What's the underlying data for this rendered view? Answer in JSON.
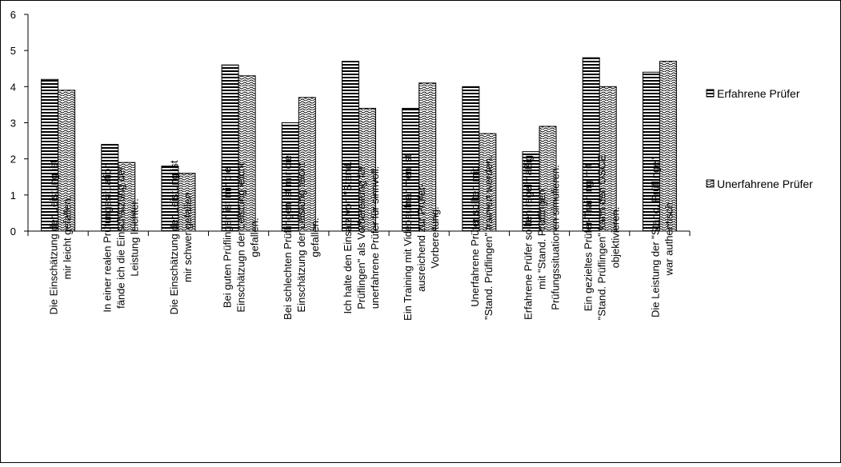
{
  "chart_data": {
    "type": "bar",
    "ylim": [
      0,
      6
    ],
    "yticks": [
      "0",
      "1",
      "2",
      "3",
      "4",
      "5",
      "6"
    ],
    "grid": false,
    "legend_position": "right",
    "categories": [
      [
        "Die Einschätzung der Leistung ist",
        "mir leicht gefallen."
      ],
      [
        "In einer realen Prüfungssituation",
        "fände ich die Einschätzung der",
        "Leistung leichter."
      ],
      [
        "Die Einschätzung der Leistung ist",
        "mir schwer gefallen"
      ],
      [
        "Bei guten Prüflingen ist mir die",
        "Einschätzugn der Leistung leicht",
        "gefallen."
      ],
      [
        "Bei schlechten Prüflingen ist mir die",
        "Einschätzung der Leistung leicht",
        "gefallen."
      ],
      [
        "Ich halte den Einsatz von \"Stand.",
        "Prüflingen\" als Vorbereitung für",
        "unerfahrene Prüfer für sinnvoll."
      ],
      [
        "Ein Training mit Videoaufnahmen ist",
        "ausreichend zur Prüfer-",
        "Vorbereitung."
      ],
      [
        "Unerfahrene Prüfer sollten mit",
        "\"Stand. Prüflingen\" trainiert werden."
      ],
      [
        "Erfahrene Prüfer sollten regelmäßig",
        "mit \"Stand. Prüflingen\"",
        "Prüfungssituationen simulieren."
      ],
      [
        "Ein gezieltes Prüfer-Training mit",
        "\"Stand. Prüflingen\" kann den OSCE",
        "objektivieren."
      ],
      [
        "Die Leistung der \"Stand. Prüflinge\"",
        "war authentisch."
      ]
    ],
    "series": [
      {
        "name": "Erfahrene Prüfer",
        "pattern": "horizontal-stripes",
        "values": [
          4.2,
          2.4,
          1.8,
          4.6,
          3.0,
          4.7,
          3.4,
          4.0,
          2.2,
          4.8,
          4.4
        ]
      },
      {
        "name": "Unerfahrene Prüfer",
        "pattern": "wave",
        "values": [
          3.9,
          1.9,
          1.6,
          4.3,
          3.7,
          3.4,
          4.1,
          2.7,
          2.9,
          4.0,
          4.7
        ]
      }
    ],
    "colors": {
      "stroke": "#000000",
      "background": "#ffffff"
    }
  }
}
